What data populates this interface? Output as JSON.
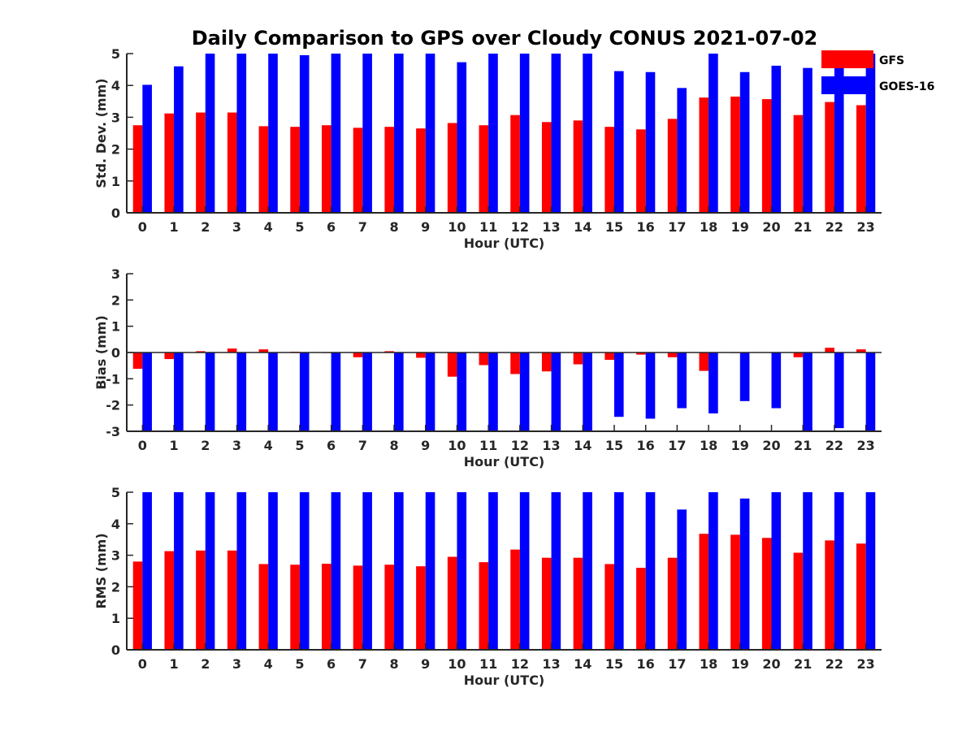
{
  "title": "Daily Comparison to GPS over Cloudy CONUS 2021-07-02",
  "colors": {
    "GFS": "#ff0000",
    "GOES-16": "#0000ff",
    "axis": "#262626"
  },
  "legend": [
    {
      "name": "GFS",
      "color_key": "GFS"
    },
    {
      "name": "GOES-16",
      "color_key": "GOES-16"
    }
  ],
  "chart_data": [
    {
      "type": "bar",
      "title": "Daily Comparison to GPS over Cloudy CONUS 2021-07-02",
      "xlabel": "Hour (UTC)",
      "ylabel": "Std. Dev. (mm)",
      "ylim": [
        0,
        5
      ],
      "yticks": [
        0,
        1,
        2,
        3,
        4,
        5
      ],
      "categories": [
        "0",
        "1",
        "2",
        "3",
        "4",
        "5",
        "6",
        "7",
        "8",
        "9",
        "10",
        "11",
        "12",
        "13",
        "14",
        "15",
        "16",
        "17",
        "18",
        "19",
        "20",
        "21",
        "22",
        "23"
      ],
      "series": [
        {
          "name": "GFS",
          "values": [
            2.75,
            3.12,
            3.15,
            3.15,
            2.72,
            2.7,
            2.75,
            2.67,
            2.7,
            2.65,
            2.82,
            2.75,
            3.07,
            2.85,
            2.9,
            2.7,
            2.62,
            2.95,
            3.62,
            3.65,
            3.57,
            3.07,
            3.48,
            3.38
          ]
        },
        {
          "name": "GOES-16",
          "values": [
            4.02,
            4.6,
            5.0,
            5.0,
            5.0,
            4.95,
            5.0,
            5.0,
            5.0,
            5.0,
            4.73,
            5.0,
            5.0,
            5.0,
            5.0,
            4.45,
            4.42,
            3.92,
            5.0,
            4.42,
            4.62,
            4.55,
            5.0,
            5.0
          ]
        }
      ]
    },
    {
      "type": "bar",
      "xlabel": "Hour (UTC)",
      "ylabel": "Bias (mm)",
      "ylim": [
        -3,
        3
      ],
      "yticks": [
        -3,
        -2,
        -1,
        0,
        1,
        2,
        3
      ],
      "categories": [
        "0",
        "1",
        "2",
        "3",
        "4",
        "5",
        "6",
        "7",
        "8",
        "9",
        "10",
        "11",
        "12",
        "13",
        "14",
        "15",
        "16",
        "17",
        "18",
        "19",
        "20",
        "21",
        "22",
        "23"
      ],
      "series": [
        {
          "name": "GFS",
          "values": [
            -0.62,
            -0.25,
            0.05,
            0.15,
            0.12,
            0.03,
            -0.02,
            -0.18,
            0.05,
            -0.2,
            -0.92,
            -0.48,
            -0.82,
            -0.72,
            -0.45,
            -0.28,
            -0.08,
            -0.18,
            -0.7,
            -0.02,
            0.0,
            -0.18,
            0.18,
            0.12
          ]
        },
        {
          "name": "GOES-16",
          "values": [
            -3.0,
            -3.0,
            -3.0,
            -3.0,
            -3.0,
            -3.0,
            -3.0,
            -3.0,
            -3.0,
            -3.0,
            -3.0,
            -3.0,
            -3.0,
            -3.0,
            -3.0,
            -2.45,
            -2.52,
            -2.12,
            -2.32,
            -1.85,
            -2.12,
            -3.0,
            -2.88,
            -3.0
          ]
        }
      ]
    },
    {
      "type": "bar",
      "xlabel": "Hour (UTC)",
      "ylabel": "RMS (mm)",
      "ylim": [
        0,
        5
      ],
      "yticks": [
        0,
        1,
        2,
        3,
        4,
        5
      ],
      "categories": [
        "0",
        "1",
        "2",
        "3",
        "4",
        "5",
        "6",
        "7",
        "8",
        "9",
        "10",
        "11",
        "12",
        "13",
        "14",
        "15",
        "16",
        "17",
        "18",
        "19",
        "20",
        "21",
        "22",
        "23"
      ],
      "series": [
        {
          "name": "GFS",
          "values": [
            2.8,
            3.13,
            3.15,
            3.15,
            2.72,
            2.7,
            2.73,
            2.67,
            2.7,
            2.65,
            2.95,
            2.78,
            3.18,
            2.92,
            2.92,
            2.72,
            2.6,
            2.92,
            3.68,
            3.65,
            3.55,
            3.08,
            3.47,
            3.37
          ]
        },
        {
          "name": "GOES-16",
          "values": [
            5.0,
            5.0,
            5.0,
            5.0,
            5.0,
            5.0,
            5.0,
            5.0,
            5.0,
            5.0,
            5.0,
            5.0,
            5.0,
            5.0,
            5.0,
            5.0,
            5.0,
            4.45,
            5.0,
            4.8,
            5.0,
            5.0,
            5.0,
            5.0
          ]
        }
      ]
    }
  ]
}
